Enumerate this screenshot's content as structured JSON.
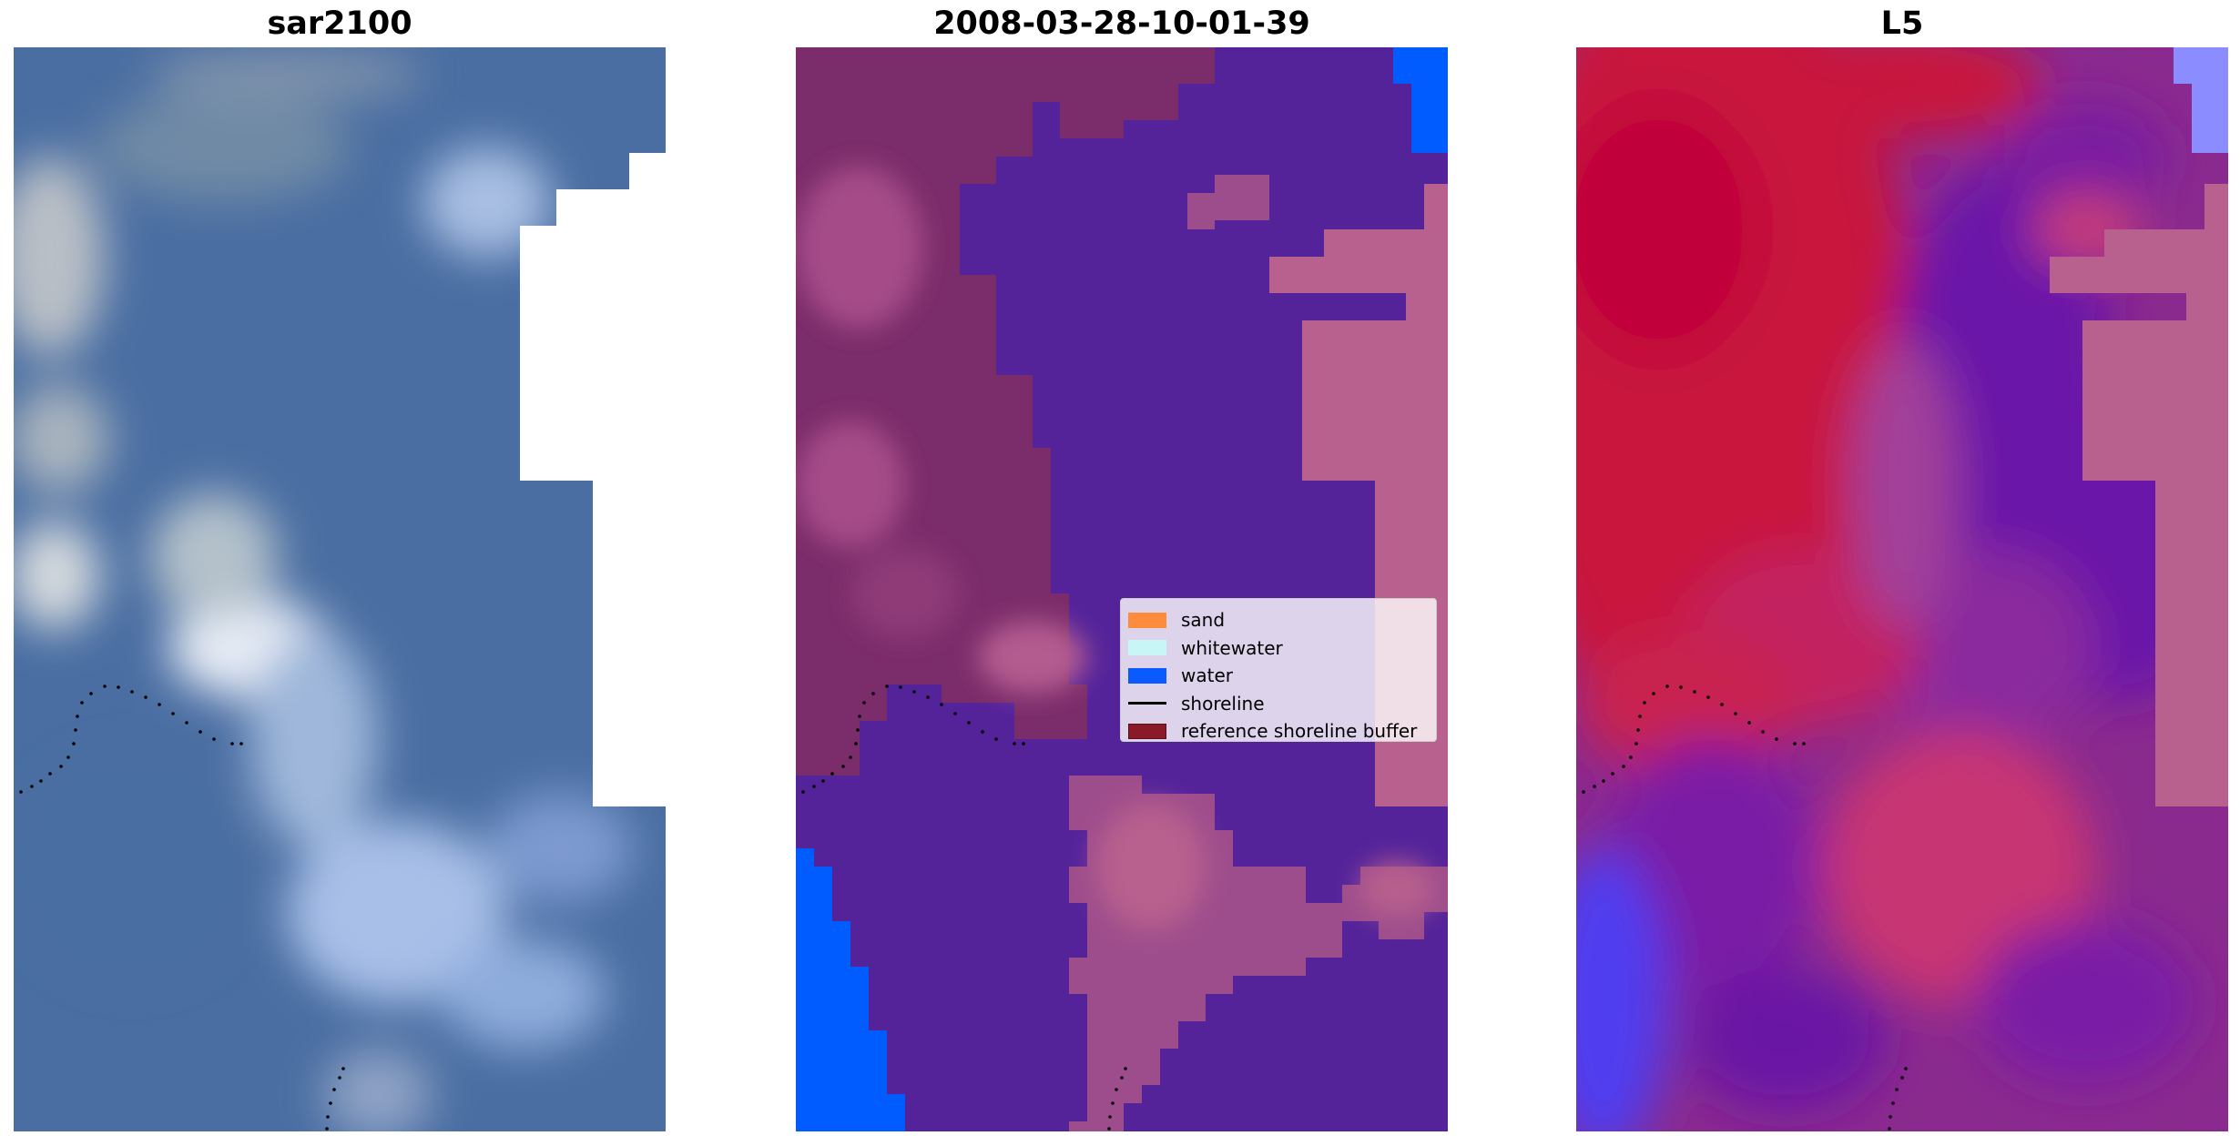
{
  "figure": {
    "panels": [
      {
        "title": "sar2100"
      },
      {
        "title": "2008-03-28-10-01-39"
      },
      {
        "title": "L5"
      }
    ],
    "legend": {
      "entries": [
        {
          "label": "sand",
          "color": "#ff8c3c",
          "kind": "patch"
        },
        {
          "label": "whitewater",
          "color": "#c8f5f5",
          "kind": "patch"
        },
        {
          "label": "water",
          "color": "#0a5aff",
          "kind": "patch"
        },
        {
          "label": "shoreline",
          "color": "#000000",
          "kind": "line"
        },
        {
          "label": "reference shoreline buffer",
          "color": "#8b1a28",
          "kind": "patch"
        }
      ]
    },
    "colors": {
      "rgb_water_blue": "#4a6fa2",
      "rgb_whitewater": "#dfe6f1",
      "class_background": "#54239a",
      "class_pink": "#b8608e",
      "class_water": "#005cff",
      "prob_red": "#c8143c",
      "prob_purple": "#6a18a8"
    }
  }
}
